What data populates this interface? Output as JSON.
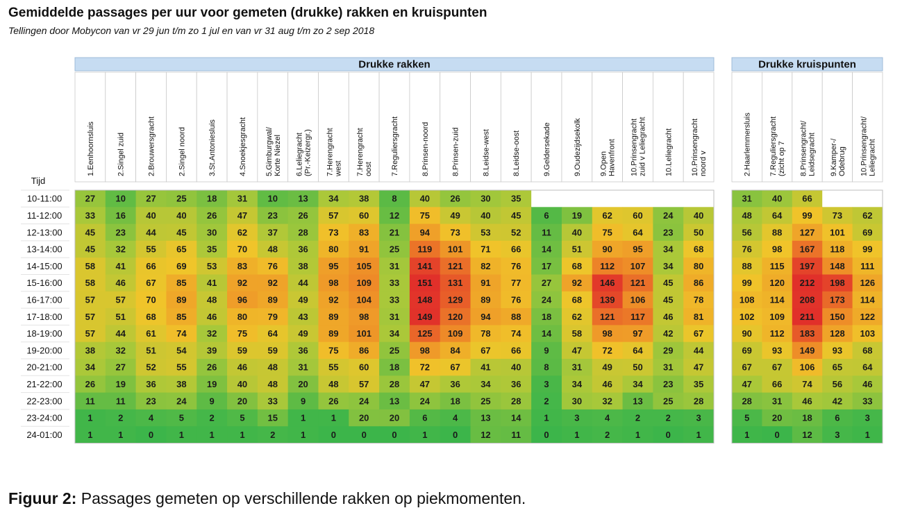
{
  "chart_data": {
    "type": "heatmap",
    "title": "Gemiddelde passages per uur voor gemeten (drukke) rakken en kruispunten",
    "subtitle": "Tellingen door Mobycon van vr 29 jun t/m zo 1 jul en van vr 31 aug t/m zo 2 sep 2018",
    "row_header": "Tijd",
    "rows": [
      "10-11:00",
      "11-12:00",
      "12-13:00",
      "13-14:00",
      "14-15:00",
      "15-16:00",
      "16-17:00",
      "17-18:00",
      "18-19:00",
      "19-20:00",
      "20-21:00",
      "21-22:00",
      "22-23:00",
      "23-24:00",
      "24-01:00"
    ],
    "groups": [
      {
        "name": "Drukke rakken",
        "columns": [
          [
            "1.Eenhoornsluis"
          ],
          [
            "2.Singel zuid"
          ],
          [
            "2.Brouwersgracht"
          ],
          [
            "2.Singel noord"
          ],
          [
            "3.St.Antoniesluis"
          ],
          [
            "4.Snoekjesgracht"
          ],
          [
            "5.Gimburgwal/",
            "Korte Niezel"
          ],
          [
            "6.Leliegracht",
            "(Pr.-Keizergr.)"
          ],
          [
            "7.Herengracht",
            "west"
          ],
          [
            "7.Herengracht",
            "oost"
          ],
          [
            "7.Reguliersgracht"
          ],
          [
            "8.Prinsen-noord"
          ],
          [
            "8.Prinsen-zuid"
          ],
          [
            "8.Leidse-west"
          ],
          [
            "8.Leidse-oost"
          ],
          [
            "9.Geldersekade"
          ],
          [
            "9.Oudezijdsekolk"
          ],
          [
            "9.Open",
            "Havenfront"
          ],
          [
            "10.Prinsengracht",
            "zuid v Leliegracht"
          ],
          [
            "10.Leliegracht"
          ],
          [
            "10.Prinsengracht",
            "noord v"
          ]
        ],
        "values": [
          [
            27,
            10,
            27,
            25,
            18,
            31,
            10,
            13,
            34,
            38,
            8,
            40,
            26,
            30,
            35,
            null,
            null,
            null,
            null,
            null,
            null
          ],
          [
            33,
            16,
            40,
            40,
            26,
            47,
            23,
            26,
            57,
            60,
            12,
            75,
            49,
            40,
            45,
            6,
            19,
            62,
            60,
            24,
            40
          ],
          [
            45,
            23,
            44,
            45,
            30,
            62,
            37,
            28,
            73,
            83,
            21,
            94,
            73,
            53,
            52,
            11,
            40,
            75,
            64,
            23,
            50
          ],
          [
            45,
            32,
            55,
            65,
            35,
            70,
            48,
            36,
            80,
            91,
            25,
            119,
            101,
            71,
            66,
            14,
            51,
            90,
            95,
            34,
            68
          ],
          [
            58,
            41,
            66,
            69,
            53,
            83,
            76,
            38,
            95,
            105,
            31,
            141,
            121,
            82,
            76,
            17,
            68,
            112,
            107,
            34,
            80
          ],
          [
            58,
            46,
            67,
            85,
            41,
            92,
            92,
            44,
            98,
            109,
            33,
            151,
            131,
            91,
            77,
            27,
            92,
            146,
            121,
            45,
            86
          ],
          [
            57,
            57,
            70,
            89,
            48,
            96,
            89,
            49,
            92,
            104,
            33,
            148,
            129,
            89,
            76,
            24,
            68,
            139,
            106,
            45,
            78
          ],
          [
            57,
            51,
            68,
            85,
            46,
            80,
            79,
            43,
            89,
            98,
            31,
            149,
            120,
            94,
            88,
            18,
            62,
            121,
            117,
            46,
            81
          ],
          [
            57,
            44,
            61,
            74,
            32,
            75,
            64,
            49,
            89,
            101,
            34,
            125,
            109,
            78,
            74,
            14,
            58,
            98,
            97,
            42,
            67
          ],
          [
            38,
            32,
            51,
            54,
            39,
            59,
            59,
            36,
            75,
            86,
            25,
            98,
            84,
            67,
            66,
            9,
            47,
            72,
            64,
            29,
            44
          ],
          [
            34,
            27,
            52,
            55,
            26,
            46,
            48,
            31,
            55,
            60,
            18,
            72,
            67,
            41,
            40,
            8,
            31,
            49,
            50,
            31,
            47
          ],
          [
            26,
            19,
            36,
            38,
            19,
            40,
            48,
            20,
            48,
            57,
            28,
            47,
            36,
            34,
            36,
            3,
            34,
            46,
            34,
            23,
            35
          ],
          [
            11,
            11,
            23,
            24,
            9,
            20,
            33,
            9,
            26,
            24,
            13,
            24,
            18,
            25,
            28,
            2,
            30,
            32,
            13,
            25,
            28
          ],
          [
            1,
            2,
            4,
            5,
            2,
            5,
            15,
            1,
            1,
            20,
            20,
            6,
            4,
            13,
            14,
            1,
            3,
            4,
            2,
            2,
            3
          ],
          [
            1,
            1,
            0,
            1,
            1,
            1,
            2,
            1,
            0,
            0,
            0,
            1,
            0,
            12,
            11,
            0,
            1,
            2,
            1,
            0,
            1
          ]
        ]
      },
      {
        "name": "Drukke kruispunten",
        "columns": [
          [
            "2.Haarlemmersluis"
          ],
          [
            "7.Reguliersgracht",
            "(zicht op 7"
          ],
          [
            "8.Prinsengracht/",
            "Leidsegracht"
          ],
          [
            "9.Kamper-/",
            "Odebrug"
          ],
          [
            "10.Prinsengracht/",
            "Leliegracht"
          ]
        ],
        "values": [
          [
            31,
            40,
            66,
            null,
            null
          ],
          [
            48,
            64,
            99,
            73,
            62
          ],
          [
            56,
            88,
            127,
            101,
            69
          ],
          [
            76,
            98,
            167,
            118,
            99
          ],
          [
            88,
            115,
            197,
            148,
            111
          ],
          [
            99,
            120,
            212,
            198,
            126
          ],
          [
            108,
            114,
            208,
            173,
            114
          ],
          [
            102,
            109,
            211,
            150,
            122
          ],
          [
            90,
            112,
            183,
            128,
            103
          ],
          [
            69,
            93,
            149,
            93,
            68
          ],
          [
            67,
            67,
            106,
            65,
            64
          ],
          [
            47,
            66,
            74,
            56,
            46
          ],
          [
            28,
            31,
            46,
            42,
            33
          ],
          [
            5,
            20,
            18,
            6,
            3
          ],
          [
            1,
            0,
            12,
            3,
            1
          ]
        ]
      }
    ],
    "color_scale": [
      "#3cb54a",
      "#a7c83a",
      "#f0c52a",
      "#ee8a28",
      "#e1302a"
    ],
    "header_color": "#c6dcf2"
  },
  "caption": {
    "label": "Figuur 2:",
    "text": "Passages gemeten op verschillende rakken op piekmomenten."
  }
}
